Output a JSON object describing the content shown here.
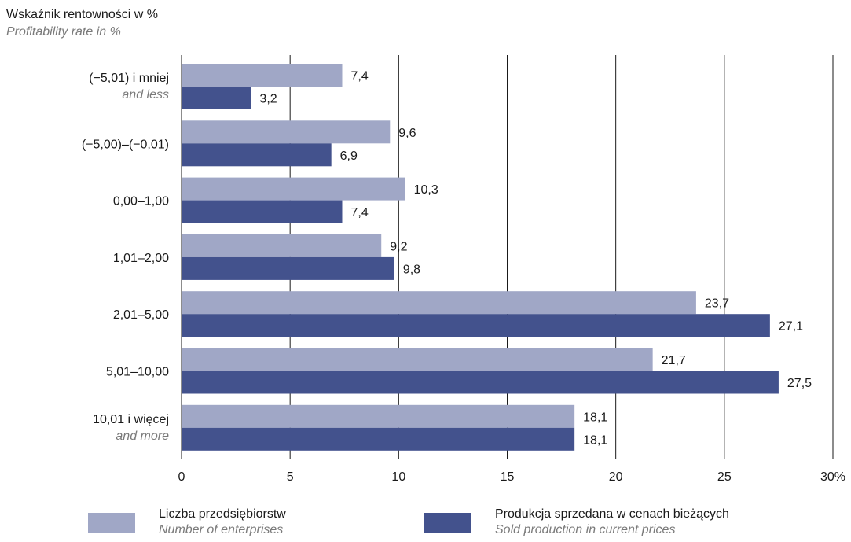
{
  "y_axis_title": {
    "pl": "Wskaźnik rentowności w %",
    "en": "Profitability rate in %"
  },
  "colors": {
    "enterprises": "#a0a7c6",
    "production": "#43528d",
    "grid": "#1a1a1a"
  },
  "legend": [
    {
      "pl": "Liczba przedsiębiorstw",
      "en": "Number of enterprises"
    },
    {
      "pl": "Produkcja sprzedana w cenach bieżących",
      "en": "Sold production in current prices"
    }
  ],
  "chart_data": {
    "type": "bar",
    "orientation": "horizontal",
    "categories": [
      {
        "label": "(−5,01) i mniej",
        "sublabel": "and less"
      },
      {
        "label": "(−5,00)–(−0,01)",
        "sublabel": ""
      },
      {
        "label": "0,00–1,00",
        "sublabel": ""
      },
      {
        "label": "1,01–2,00",
        "sublabel": ""
      },
      {
        "label": "2,01–5,00",
        "sublabel": ""
      },
      {
        "label": "5,01–10,00",
        "sublabel": ""
      },
      {
        "label": "10,01 i więcej",
        "sublabel": "and more"
      }
    ],
    "series": [
      {
        "name": "Liczba przedsiębiorstw",
        "values": [
          7.4,
          9.6,
          10.3,
          9.2,
          23.7,
          21.7,
          18.1
        ],
        "labels": [
          "7,4",
          "9,6",
          "10,3",
          "9,2",
          "23,7",
          "21,7",
          "18,1"
        ]
      },
      {
        "name": "Produkcja sprzedana w cenach bieżących",
        "values": [
          3.2,
          6.9,
          7.4,
          9.8,
          27.1,
          27.5,
          18.1
        ],
        "labels": [
          "3,2",
          "6,9",
          "7,4",
          "9,8",
          "27,1",
          "27,5",
          "18,1"
        ]
      }
    ],
    "xlim": [
      0,
      30
    ],
    "xticks": [
      0,
      5,
      10,
      15,
      20,
      25,
      30
    ],
    "xtick_labels": [
      "0",
      "5",
      "10",
      "15",
      "20",
      "25",
      "30%"
    ],
    "grid": "vertical"
  }
}
